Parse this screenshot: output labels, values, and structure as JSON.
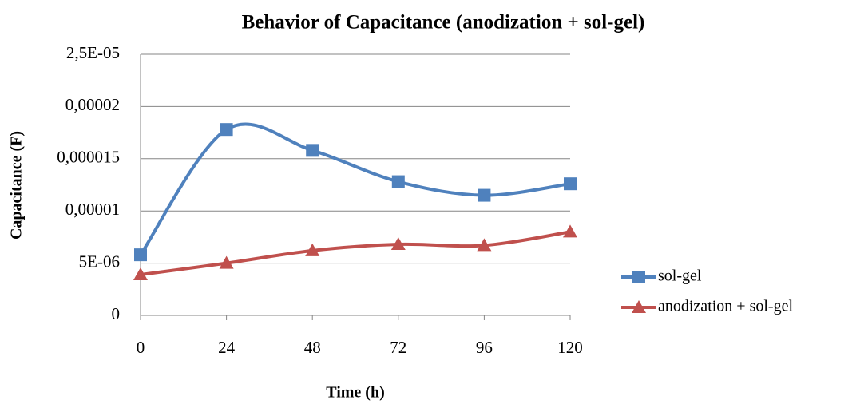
{
  "chart_data": {
    "type": "line",
    "title": "Behavior of Capacitance (anodization + sol-gel)",
    "x_label": "Time (h)",
    "y_label": "Capacitance (F)",
    "x": [
      0,
      24,
      48,
      72,
      96,
      120
    ],
    "series": [
      {
        "name": "sol-gel",
        "color": "#4f81bd",
        "marker": "square",
        "values": [
          5.8e-06,
          1.78e-05,
          1.58e-05,
          1.28e-05,
          1.15e-05,
          1.26e-05
        ]
      },
      {
        "name": "anodization + sol-gel",
        "color": "#c0504d",
        "marker": "triangle",
        "values": [
          3.9e-06,
          5e-06,
          6.2e-06,
          6.8e-06,
          6.7e-06,
          8e-06
        ]
      }
    ],
    "xlim": [
      0,
      120
    ],
    "xticks": [
      0,
      24,
      48,
      72,
      96,
      120
    ],
    "ylim": [
      0,
      2.5e-05
    ],
    "yticks": [
      0,
      {
        "value": 5e-06,
        "label": "5E-06"
      },
      {
        "value": 1e-05,
        "label": "0,00001"
      },
      {
        "value": 1.5e-05,
        "label": "0,000015"
      },
      {
        "value": 2e-05,
        "label": "0,00002"
      },
      {
        "value": 2.5e-05,
        "label": "2,5E-05"
      }
    ],
    "grid": true,
    "smooth": true,
    "legend": "right"
  }
}
